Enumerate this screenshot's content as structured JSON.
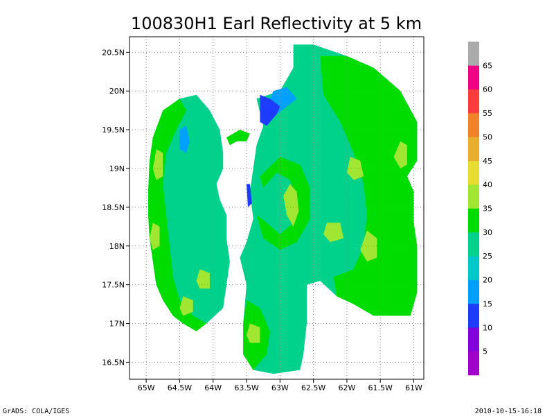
{
  "chart_data": {
    "type": "heatmap",
    "title": "100830H1 Earl Reflectivity at 5 km",
    "xlabel": "",
    "ylabel": "",
    "xlim": [
      -65.25,
      -60.85
    ],
    "ylim": [
      16.28,
      20.7
    ],
    "grid": true,
    "x_ticks": [
      {
        "value": -65.0,
        "label": "65W"
      },
      {
        "value": -64.5,
        "label": "64.5W"
      },
      {
        "value": -64.0,
        "label": "64W"
      },
      {
        "value": -63.5,
        "label": "63.5W"
      },
      {
        "value": -63.0,
        "label": "63W"
      },
      {
        "value": -62.5,
        "label": "62.5W"
      },
      {
        "value": -62.0,
        "label": "62W"
      },
      {
        "value": -61.5,
        "label": "61.5W"
      },
      {
        "value": -61.0,
        "label": "61W"
      }
    ],
    "y_ticks": [
      {
        "value": 16.5,
        "label": "16.5N"
      },
      {
        "value": 17.0,
        "label": "17N"
      },
      {
        "value": 17.5,
        "label": "17.5N"
      },
      {
        "value": 18.0,
        "label": "18N"
      },
      {
        "value": 18.5,
        "label": "18.5N"
      },
      {
        "value": 19.0,
        "label": "19N"
      },
      {
        "value": 19.5,
        "label": "19.5N"
      },
      {
        "value": 20.0,
        "label": "20N"
      },
      {
        "value": 20.5,
        "label": "20.5N"
      }
    ],
    "colorbar": {
      "placement": "right",
      "levels": [
        {
          "min": 0,
          "max": 5,
          "color": "#a000c8"
        },
        {
          "min": 5,
          "max": 10,
          "color": "#8200dc"
        },
        {
          "min": 10,
          "max": 15,
          "color": "#1e3cff"
        },
        {
          "min": 15,
          "max": 20,
          "color": "#00a0ff"
        },
        {
          "min": 20,
          "max": 25,
          "color": "#00c8c8"
        },
        {
          "min": 25,
          "max": 30,
          "color": "#00d28c"
        },
        {
          "min": 30,
          "max": 35,
          "color": "#00dc00"
        },
        {
          "min": 35,
          "max": 40,
          "color": "#a0e632"
        },
        {
          "min": 40,
          "max": 45,
          "color": "#e6dc32"
        },
        {
          "min": 45,
          "max": 50,
          "color": "#e6af2d"
        },
        {
          "min": 50,
          "max": 55,
          "color": "#f08228"
        },
        {
          "min": 55,
          "max": 60,
          "color": "#fa3c3c"
        },
        {
          "min": 60,
          "max": 65,
          "color": "#f00082"
        },
        {
          "min": 65,
          "max": 70,
          "color": "#aaaaaa"
        }
      ],
      "labels": [
        "5",
        "10",
        "15",
        "20",
        "25",
        "30",
        "35",
        "40",
        "45",
        "50",
        "55",
        "60",
        "65"
      ]
    },
    "regions": [
      {
        "name": "western-arc",
        "level": 25,
        "polygon": [
          [
            -64.95,
            19.1
          ],
          [
            -64.9,
            19.4
          ],
          [
            -64.75,
            19.75
          ],
          [
            -64.5,
            19.9
          ],
          [
            -64.25,
            19.95
          ],
          [
            -64.05,
            19.75
          ],
          [
            -63.9,
            19.5
          ],
          [
            -63.85,
            19.2
          ],
          [
            -63.85,
            19.0
          ],
          [
            -63.95,
            18.8
          ],
          [
            -63.9,
            18.6
          ],
          [
            -63.8,
            18.4
          ],
          [
            -63.8,
            18.1
          ],
          [
            -63.75,
            17.8
          ],
          [
            -63.8,
            17.5
          ],
          [
            -63.85,
            17.2
          ],
          [
            -64.1,
            17.0
          ],
          [
            -64.25,
            16.9
          ],
          [
            -64.45,
            17.0
          ],
          [
            -64.6,
            17.1
          ],
          [
            -64.75,
            17.3
          ],
          [
            -64.85,
            17.5
          ],
          [
            -64.9,
            17.8
          ],
          [
            -64.95,
            18.1
          ],
          [
            -64.97,
            18.4
          ],
          [
            -64.97,
            18.7
          ]
        ]
      },
      {
        "name": "western-arc-outer",
        "level": 30,
        "polygon": [
          [
            -64.95,
            19.1
          ],
          [
            -64.9,
            19.4
          ],
          [
            -64.75,
            19.75
          ],
          [
            -64.5,
            19.9
          ],
          [
            -64.4,
            19.75
          ],
          [
            -64.55,
            19.5
          ],
          [
            -64.7,
            19.2
          ],
          [
            -64.75,
            18.8
          ],
          [
            -64.7,
            18.4
          ],
          [
            -64.65,
            18.0
          ],
          [
            -64.6,
            17.6
          ],
          [
            -64.5,
            17.3
          ],
          [
            -64.3,
            17.1
          ],
          [
            -64.1,
            17.0
          ],
          [
            -64.25,
            16.9
          ],
          [
            -64.45,
            17.0
          ],
          [
            -64.6,
            17.1
          ],
          [
            -64.75,
            17.3
          ],
          [
            -64.85,
            17.5
          ],
          [
            -64.9,
            17.8
          ],
          [
            -64.95,
            18.1
          ],
          [
            -64.97,
            18.4
          ],
          [
            -64.97,
            18.7
          ]
        ]
      },
      {
        "name": "central-eastern-mass",
        "level": 25,
        "polygon": [
          [
            -63.35,
            19.9
          ],
          [
            -63.0,
            20.0
          ],
          [
            -62.8,
            20.3
          ],
          [
            -62.8,
            20.6
          ],
          [
            -62.5,
            20.6
          ],
          [
            -62.0,
            20.45
          ],
          [
            -61.6,
            20.3
          ],
          [
            -61.2,
            20.0
          ],
          [
            -60.95,
            19.6
          ],
          [
            -60.95,
            19.1
          ],
          [
            -61.1,
            18.9
          ],
          [
            -61.0,
            18.7
          ],
          [
            -61.0,
            18.3
          ],
          [
            -60.95,
            18.0
          ],
          [
            -60.95,
            17.4
          ],
          [
            -61.05,
            17.1
          ],
          [
            -61.35,
            17.1
          ],
          [
            -61.6,
            17.1
          ],
          [
            -61.9,
            17.25
          ],
          [
            -62.15,
            17.35
          ],
          [
            -62.4,
            17.55
          ],
          [
            -62.6,
            17.5
          ],
          [
            -62.6,
            17.0
          ],
          [
            -62.65,
            16.6
          ],
          [
            -62.7,
            16.4
          ],
          [
            -63.1,
            16.35
          ],
          [
            -63.4,
            16.4
          ],
          [
            -63.55,
            16.6
          ],
          [
            -63.55,
            17.0
          ],
          [
            -63.5,
            17.5
          ],
          [
            -63.6,
            17.85
          ],
          [
            -63.5,
            18.05
          ],
          [
            -63.4,
            18.35
          ],
          [
            -63.45,
            18.7
          ],
          [
            -63.4,
            19.0
          ],
          [
            -63.35,
            19.3
          ],
          [
            -63.25,
            19.55
          ]
        ]
      },
      {
        "name": "eastern-outer",
        "level": 30,
        "polygon": [
          [
            -62.4,
            20.45
          ],
          [
            -62.0,
            20.45
          ],
          [
            -61.6,
            20.3
          ],
          [
            -61.2,
            20.0
          ],
          [
            -60.95,
            19.6
          ],
          [
            -60.95,
            19.1
          ],
          [
            -61.1,
            18.9
          ],
          [
            -61.0,
            18.7
          ],
          [
            -61.0,
            18.3
          ],
          [
            -60.95,
            18.0
          ],
          [
            -60.95,
            17.4
          ],
          [
            -61.05,
            17.1
          ],
          [
            -61.35,
            17.1
          ],
          [
            -61.6,
            17.1
          ],
          [
            -61.9,
            17.25
          ],
          [
            -62.15,
            17.35
          ],
          [
            -62.2,
            17.6
          ],
          [
            -61.9,
            17.7
          ],
          [
            -61.75,
            18.0
          ],
          [
            -61.7,
            18.4
          ],
          [
            -61.75,
            18.8
          ],
          [
            -61.9,
            19.2
          ],
          [
            -62.1,
            19.6
          ],
          [
            -62.35,
            19.95
          ]
        ]
      },
      {
        "name": "south-band",
        "level": 30,
        "polygon": [
          [
            -63.55,
            17.0
          ],
          [
            -63.5,
            17.3
          ],
          [
            -63.3,
            17.2
          ],
          [
            -63.15,
            16.9
          ],
          [
            -63.2,
            16.6
          ],
          [
            -63.4,
            16.4
          ],
          [
            -63.55,
            16.6
          ]
        ]
      },
      {
        "name": "north-blue",
        "level": 15,
        "polygon": [
          [
            -63.1,
            20.0
          ],
          [
            -62.9,
            20.05
          ],
          [
            -62.75,
            19.9
          ],
          [
            -62.9,
            19.8
          ],
          [
            -63.05,
            19.7
          ],
          [
            -63.15,
            19.6
          ],
          [
            -63.25,
            19.7
          ]
        ]
      },
      {
        "name": "north-deep-blue",
        "level": 10,
        "polygon": [
          [
            -63.3,
            19.95
          ],
          [
            -63.15,
            19.9
          ],
          [
            -63.0,
            19.8
          ],
          [
            -63.05,
            19.7
          ],
          [
            -63.2,
            19.55
          ],
          [
            -63.3,
            19.6
          ]
        ]
      },
      {
        "name": "west-blue",
        "level": 15,
        "polygon": [
          [
            -64.5,
            19.5
          ],
          [
            -64.4,
            19.55
          ],
          [
            -64.35,
            19.35
          ],
          [
            -64.4,
            19.2
          ],
          [
            -64.5,
            19.25
          ]
        ]
      },
      {
        "name": "west-core-blue",
        "level": 10,
        "polygon": [
          [
            -63.5,
            18.8
          ],
          [
            -63.45,
            18.8
          ],
          [
            -63.42,
            18.55
          ],
          [
            -63.48,
            18.5
          ]
        ]
      },
      {
        "name": "eye-ring",
        "level": 30,
        "polygon": [
          [
            -63.3,
            18.9
          ],
          [
            -63.0,
            19.15
          ],
          [
            -62.7,
            19.05
          ],
          [
            -62.55,
            18.75
          ],
          [
            -62.55,
            18.35
          ],
          [
            -62.75,
            18.05
          ],
          [
            -63.0,
            17.95
          ],
          [
            -63.25,
            18.1
          ],
          [
            -63.35,
            18.4
          ],
          [
            -63.2,
            18.3
          ],
          [
            -63.0,
            18.15
          ],
          [
            -62.8,
            18.3
          ],
          [
            -62.75,
            18.6
          ],
          [
            -62.85,
            18.85
          ],
          [
            -63.05,
            18.95
          ],
          [
            -63.25,
            18.75
          ]
        ]
      },
      {
        "name": "eye-strong",
        "level": 35,
        "polygon": [
          [
            -62.85,
            18.8
          ],
          [
            -62.75,
            18.7
          ],
          [
            -62.72,
            18.45
          ],
          [
            -62.8,
            18.25
          ],
          [
            -62.9,
            18.4
          ],
          [
            -62.95,
            18.65
          ]
        ]
      },
      {
        "name": "east-blob-1",
        "level": 35,
        "polygon": [
          [
            -61.95,
            19.15
          ],
          [
            -61.8,
            19.1
          ],
          [
            -61.75,
            18.9
          ],
          [
            -61.9,
            18.85
          ],
          [
            -62.0,
            18.95
          ]
        ]
      },
      {
        "name": "east-blob-2",
        "level": 35,
        "polygon": [
          [
            -61.7,
            18.2
          ],
          [
            -61.55,
            18.1
          ],
          [
            -61.55,
            17.85
          ],
          [
            -61.7,
            17.8
          ],
          [
            -61.8,
            17.95
          ]
        ]
      },
      {
        "name": "east-blob-3",
        "level": 35,
        "polygon": [
          [
            -61.2,
            19.35
          ],
          [
            -61.1,
            19.3
          ],
          [
            -61.1,
            19.05
          ],
          [
            -61.2,
            19.0
          ],
          [
            -61.3,
            19.15
          ]
        ]
      },
      {
        "name": "east-blob-4",
        "level": 35,
        "polygon": [
          [
            -62.3,
            18.3
          ],
          [
            -62.1,
            18.3
          ],
          [
            -62.05,
            18.1
          ],
          [
            -62.25,
            18.05
          ],
          [
            -62.35,
            18.15
          ]
        ]
      },
      {
        "name": "west-blob-1",
        "level": 35,
        "polygon": [
          [
            -64.85,
            19.25
          ],
          [
            -64.75,
            19.2
          ],
          [
            -64.75,
            18.9
          ],
          [
            -64.85,
            18.85
          ],
          [
            -64.9,
            19.0
          ]
        ]
      },
      {
        "name": "west-blob-2",
        "level": 35,
        "polygon": [
          [
            -64.9,
            18.3
          ],
          [
            -64.8,
            18.25
          ],
          [
            -64.8,
            18.0
          ],
          [
            -64.9,
            17.95
          ],
          [
            -64.95,
            18.1
          ]
        ]
      },
      {
        "name": "west-blob-3",
        "level": 35,
        "polygon": [
          [
            -64.45,
            17.35
          ],
          [
            -64.3,
            17.3
          ],
          [
            -64.3,
            17.15
          ],
          [
            -64.45,
            17.1
          ],
          [
            -64.5,
            17.2
          ]
        ]
      },
      {
        "name": "west-blob-4",
        "level": 35,
        "polygon": [
          [
            -64.2,
            17.7
          ],
          [
            -64.05,
            17.65
          ],
          [
            -64.05,
            17.45
          ],
          [
            -64.2,
            17.45
          ],
          [
            -64.25,
            17.55
          ]
        ]
      },
      {
        "name": "south-blob",
        "level": 35,
        "polygon": [
          [
            -63.45,
            17.0
          ],
          [
            -63.3,
            16.95
          ],
          [
            -63.3,
            16.75
          ],
          [
            -63.45,
            16.75
          ],
          [
            -63.5,
            16.85
          ]
        ]
      },
      {
        "name": "north-patch",
        "level": 30,
        "polygon": [
          [
            -63.6,
            19.5
          ],
          [
            -63.45,
            19.45
          ],
          [
            -63.5,
            19.35
          ],
          [
            -63.65,
            19.35
          ],
          [
            -63.75,
            19.3
          ],
          [
            -63.8,
            19.4
          ]
        ]
      }
    ]
  },
  "footer": {
    "left": "GrADS: COLA/IGES",
    "right": "2010-10-15-16:18"
  }
}
